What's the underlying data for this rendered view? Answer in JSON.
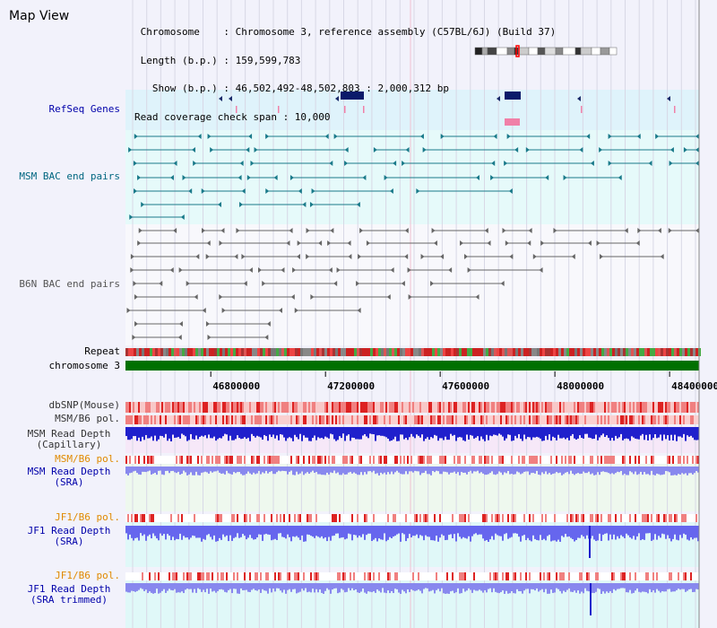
{
  "header": {
    "title": "Map View",
    "lines": [
      " Chromosome    : Chromosome 3, reference assembly (C57BL/6J) (Build 37)",
      " Length (b.p.) : 159,599,783",
      "   Show (b.p.) : 46,502,492-48,502,803 : 2,000,312 bp",
      "Read coverage check span : 10,000"
    ]
  },
  "tracks": {
    "refseq": "RefSeq Genes",
    "msm_bac": "MSM BAC end pairs",
    "b6n_bac": "B6N BAC end pairs",
    "repeat": "Repeat",
    "chromosome": "chromosome 3",
    "dbsnp": "dbSNP(Mouse)",
    "msm_b6_pol": "MSM/B6 pol.",
    "msm_read_cap_1": "MSM Read Depth",
    "msm_read_cap_2": "(Capillary)",
    "msm_b6_pol_2": "MSM/B6 pol.",
    "msm_read_sra_1": "MSM Read Depth",
    "msm_read_sra_2": "(SRA)",
    "jf1_b6_pol": "JF1/B6 pol.",
    "jf1_read_sra_1": "JF1 Read Depth",
    "jf1_read_sra_2": "(SRA)",
    "jf1_b6_pol_2": "JF1/B6 pol.",
    "jf1_read_trim_1": "JF1 Read Depth",
    "jf1_read_trim_2": "(SRA trimmed)"
  },
  "axis": {
    "start": 46502492,
    "end": 48502803,
    "ticks": [
      "46800000",
      "47200000",
      "47600000",
      "48000000",
      "48400000"
    ]
  },
  "colors": {
    "refseq_label": "#0000aa",
    "msm_label": "#006680",
    "b6n_label": "#555555",
    "pol_orange": "#e08a00",
    "read_blue": "#0000aa",
    "gene_navy": "#0a1a6a",
    "gene_pink": "#f080a8",
    "chrom_green": "#007000",
    "track_cyan": "#dff3fb",
    "bac_cyan": "#e6fafa"
  }
}
